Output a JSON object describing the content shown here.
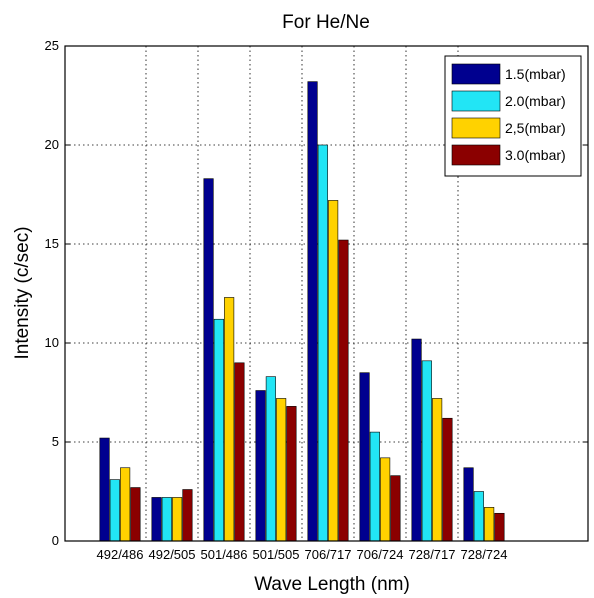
{
  "chart_data": {
    "type": "bar",
    "title": "For He/Ne",
    "xlabel": "Wave Length (nm)",
    "ylabel": "Intensity (c/sec)",
    "ylim": [
      0,
      25
    ],
    "yticks": [
      0,
      5,
      10,
      15,
      20,
      25
    ],
    "grid": true,
    "legend_position": "top-right",
    "categories": [
      "492/486",
      "492/505",
      "501/486",
      "501/505",
      "706/717",
      "706/724",
      "728/717",
      "728/724"
    ],
    "series": [
      {
        "name": "1.5(mbar)",
        "color": "#00008f",
        "values": [
          5.2,
          2.2,
          18.3,
          7.6,
          23.2,
          8.5,
          10.2,
          3.7
        ]
      },
      {
        "name": "2.0(mbar)",
        "color": "#22e5f5",
        "values": [
          3.1,
          2.2,
          11.2,
          8.3,
          20.0,
          5.5,
          9.1,
          2.5
        ]
      },
      {
        "name": "2,5(mbar)",
        "color": "#ffd200",
        "values": [
          3.7,
          2.2,
          12.3,
          7.2,
          17.2,
          4.2,
          7.2,
          1.7
        ]
      },
      {
        "name": "3.0(mbar)",
        "color": "#8b0000",
        "values": [
          2.7,
          2.6,
          9.0,
          6.8,
          15.2,
          3.3,
          6.2,
          1.4
        ]
      }
    ]
  }
}
